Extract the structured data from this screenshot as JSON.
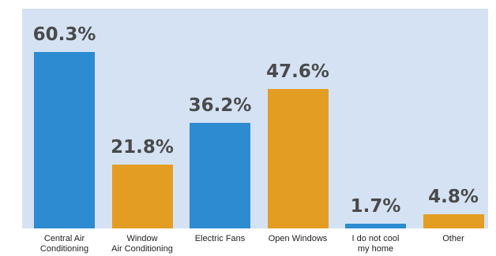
{
  "chart_data": {
    "type": "bar",
    "categories": [
      "Central Air\nConditioning",
      "Window\nAir Conditioning",
      "Electric Fans",
      "Open Windows",
      "I do not cool\nmy home",
      "Other"
    ],
    "values": [
      60.3,
      21.8,
      36.2,
      47.6,
      1.7,
      4.8
    ],
    "value_labels": [
      "60.3%",
      "21.8%",
      "36.2%",
      "47.6%",
      "1.7%",
      "4.8%"
    ],
    "ylim": [
      0,
      65
    ],
    "grid": false,
    "colors": [
      "#2d8bd2",
      "#e39d23",
      "#2d8bd2",
      "#e39d23",
      "#2d8bd2",
      "#e39d23"
    ],
    "background": "#d5e2f4"
  }
}
